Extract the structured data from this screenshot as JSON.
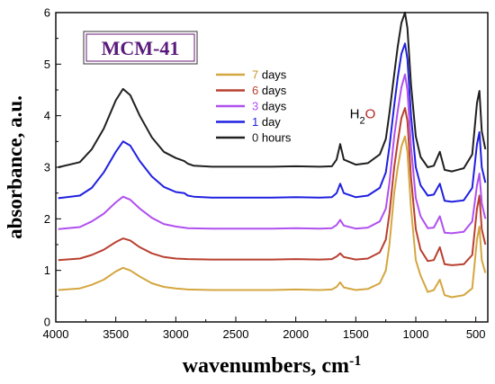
{
  "chart_data": {
    "type": "line",
    "badge": "MCM-41",
    "xlabel": "wavenumbers, cm",
    "xlabel_sup": "-1",
    "ylabel": "absorbance, a.u.",
    "xlim": [
      4000,
      400
    ],
    "ylim": [
      0,
      6
    ],
    "x_ticks": [
      4000,
      3500,
      3000,
      2500,
      2000,
      1500,
      1000,
      500
    ],
    "y_ticks": [
      0,
      1,
      2,
      3,
      4,
      5,
      6
    ],
    "grid": false,
    "legend_position": "top-center",
    "annotations": [
      {
        "text_main": "H",
        "text_sub": "2",
        "text_tail": "O",
        "tail_color": "#b22222",
        "x": 1550,
        "y": 3.95
      }
    ],
    "series": [
      {
        "name_num": "7",
        "name_unit": "days",
        "color": "#d4a640",
        "num_color": "#c8962a",
        "points": [
          [
            3980,
            0.62
          ],
          [
            3800,
            0.65
          ],
          [
            3700,
            0.72
          ],
          [
            3600,
            0.82
          ],
          [
            3500,
            0.98
          ],
          [
            3440,
            1.05
          ],
          [
            3380,
            1.0
          ],
          [
            3300,
            0.88
          ],
          [
            3200,
            0.75
          ],
          [
            3100,
            0.68
          ],
          [
            3000,
            0.65
          ],
          [
            2900,
            0.63
          ],
          [
            2700,
            0.62
          ],
          [
            2500,
            0.62
          ],
          [
            2200,
            0.62
          ],
          [
            2000,
            0.63
          ],
          [
            1800,
            0.62
          ],
          [
            1700,
            0.63
          ],
          [
            1660,
            0.68
          ],
          [
            1630,
            0.77
          ],
          [
            1600,
            0.67
          ],
          [
            1500,
            0.62
          ],
          [
            1400,
            0.64
          ],
          [
            1300,
            0.75
          ],
          [
            1250,
            1.0
          ],
          [
            1220,
            1.5
          ],
          [
            1180,
            2.5
          ],
          [
            1150,
            3.0
          ],
          [
            1120,
            3.4
          ],
          [
            1090,
            3.6
          ],
          [
            1070,
            3.3
          ],
          [
            1040,
            2.2
          ],
          [
            1000,
            1.2
          ],
          [
            960,
            0.9
          ],
          [
            900,
            0.58
          ],
          [
            850,
            0.62
          ],
          [
            800,
            0.82
          ],
          [
            760,
            0.52
          ],
          [
            700,
            0.48
          ],
          [
            600,
            0.52
          ],
          [
            530,
            0.65
          ],
          [
            490,
            1.6
          ],
          [
            470,
            1.85
          ],
          [
            450,
            1.2
          ],
          [
            420,
            0.95
          ]
        ]
      },
      {
        "name_num": "6",
        "name_unit": "days",
        "color": "#b84030",
        "num_color": "#b84030",
        "points": [
          [
            3980,
            1.2
          ],
          [
            3800,
            1.23
          ],
          [
            3700,
            1.3
          ],
          [
            3600,
            1.4
          ],
          [
            3500,
            1.55
          ],
          [
            3440,
            1.62
          ],
          [
            3380,
            1.58
          ],
          [
            3300,
            1.45
          ],
          [
            3200,
            1.33
          ],
          [
            3100,
            1.26
          ],
          [
            3000,
            1.23
          ],
          [
            2900,
            1.22
          ],
          [
            2700,
            1.21
          ],
          [
            2500,
            1.21
          ],
          [
            2200,
            1.21
          ],
          [
            2000,
            1.22
          ],
          [
            1800,
            1.21
          ],
          [
            1700,
            1.22
          ],
          [
            1660,
            1.27
          ],
          [
            1630,
            1.33
          ],
          [
            1600,
            1.26
          ],
          [
            1500,
            1.21
          ],
          [
            1400,
            1.23
          ],
          [
            1300,
            1.35
          ],
          [
            1250,
            1.6
          ],
          [
            1220,
            2.1
          ],
          [
            1180,
            3.0
          ],
          [
            1150,
            3.5
          ],
          [
            1120,
            3.95
          ],
          [
            1090,
            4.15
          ],
          [
            1070,
            3.9
          ],
          [
            1040,
            2.8
          ],
          [
            1000,
            1.8
          ],
          [
            960,
            1.4
          ],
          [
            900,
            1.18
          ],
          [
            850,
            1.2
          ],
          [
            800,
            1.45
          ],
          [
            760,
            1.12
          ],
          [
            700,
            1.1
          ],
          [
            600,
            1.12
          ],
          [
            530,
            1.3
          ],
          [
            490,
            2.2
          ],
          [
            470,
            2.45
          ],
          [
            450,
            1.8
          ],
          [
            420,
            1.5
          ]
        ]
      },
      {
        "name_num": "3",
        "name_unit": "days",
        "color": "#b050f0",
        "num_color": "#b050f0",
        "points": [
          [
            3980,
            1.8
          ],
          [
            3800,
            1.84
          ],
          [
            3700,
            1.95
          ],
          [
            3600,
            2.1
          ],
          [
            3500,
            2.32
          ],
          [
            3440,
            2.43
          ],
          [
            3380,
            2.37
          ],
          [
            3300,
            2.2
          ],
          [
            3200,
            2.02
          ],
          [
            3100,
            1.9
          ],
          [
            3000,
            1.85
          ],
          [
            2900,
            1.82
          ],
          [
            2700,
            1.81
          ],
          [
            2500,
            1.81
          ],
          [
            2200,
            1.81
          ],
          [
            2000,
            1.82
          ],
          [
            1800,
            1.81
          ],
          [
            1700,
            1.82
          ],
          [
            1660,
            1.88
          ],
          [
            1630,
            1.98
          ],
          [
            1600,
            1.87
          ],
          [
            1500,
            1.81
          ],
          [
            1400,
            1.83
          ],
          [
            1300,
            1.95
          ],
          [
            1250,
            2.2
          ],
          [
            1220,
            2.7
          ],
          [
            1180,
            3.6
          ],
          [
            1150,
            4.1
          ],
          [
            1120,
            4.55
          ],
          [
            1090,
            4.8
          ],
          [
            1070,
            4.5
          ],
          [
            1040,
            3.4
          ],
          [
            1000,
            2.4
          ],
          [
            960,
            2.05
          ],
          [
            900,
            1.82
          ],
          [
            850,
            1.83
          ],
          [
            800,
            2.05
          ],
          [
            760,
            1.73
          ],
          [
            700,
            1.72
          ],
          [
            600,
            1.75
          ],
          [
            530,
            1.95
          ],
          [
            490,
            2.65
          ],
          [
            470,
            2.88
          ],
          [
            450,
            2.3
          ],
          [
            420,
            2.0
          ]
        ]
      },
      {
        "name_num": "1",
        "name_unit": "day",
        "color": "#2020e0",
        "num_color": "#2020e0",
        "points": [
          [
            3980,
            2.4
          ],
          [
            3800,
            2.45
          ],
          [
            3700,
            2.6
          ],
          [
            3600,
            2.9
          ],
          [
            3500,
            3.3
          ],
          [
            3440,
            3.5
          ],
          [
            3380,
            3.42
          ],
          [
            3300,
            3.12
          ],
          [
            3200,
            2.82
          ],
          [
            3100,
            2.62
          ],
          [
            3000,
            2.52
          ],
          [
            2930,
            2.5
          ],
          [
            2900,
            2.45
          ],
          [
            2850,
            2.43
          ],
          [
            2700,
            2.41
          ],
          [
            2500,
            2.41
          ],
          [
            2200,
            2.41
          ],
          [
            2000,
            2.42
          ],
          [
            1800,
            2.41
          ],
          [
            1700,
            2.42
          ],
          [
            1660,
            2.5
          ],
          [
            1630,
            2.68
          ],
          [
            1600,
            2.5
          ],
          [
            1500,
            2.42
          ],
          [
            1400,
            2.45
          ],
          [
            1300,
            2.6
          ],
          [
            1250,
            2.9
          ],
          [
            1220,
            3.4
          ],
          [
            1180,
            4.2
          ],
          [
            1150,
            4.75
          ],
          [
            1120,
            5.2
          ],
          [
            1090,
            5.4
          ],
          [
            1070,
            5.1
          ],
          [
            1040,
            4.0
          ],
          [
            1000,
            3.0
          ],
          [
            960,
            2.65
          ],
          [
            900,
            2.45
          ],
          [
            850,
            2.47
          ],
          [
            800,
            2.68
          ],
          [
            760,
            2.35
          ],
          [
            700,
            2.33
          ],
          [
            600,
            2.36
          ],
          [
            530,
            2.6
          ],
          [
            490,
            3.45
          ],
          [
            470,
            3.68
          ],
          [
            450,
            3.0
          ],
          [
            420,
            2.7
          ]
        ]
      },
      {
        "name_num": "0",
        "name_unit": "hours",
        "color": "#202020",
        "num_color": "#202020",
        "points": [
          [
            3980,
            3.0
          ],
          [
            3800,
            3.1
          ],
          [
            3700,
            3.35
          ],
          [
            3600,
            3.75
          ],
          [
            3500,
            4.3
          ],
          [
            3440,
            4.52
          ],
          [
            3380,
            4.4
          ],
          [
            3300,
            4.0
          ],
          [
            3200,
            3.58
          ],
          [
            3100,
            3.3
          ],
          [
            3000,
            3.18
          ],
          [
            2930,
            3.12
          ],
          [
            2900,
            3.07
          ],
          [
            2850,
            3.03
          ],
          [
            2700,
            3.01
          ],
          [
            2500,
            3.01
          ],
          [
            2200,
            3.01
          ],
          [
            2000,
            3.02
          ],
          [
            1800,
            3.01
          ],
          [
            1700,
            3.02
          ],
          [
            1660,
            3.15
          ],
          [
            1630,
            3.45
          ],
          [
            1600,
            3.15
          ],
          [
            1500,
            3.05
          ],
          [
            1400,
            3.08
          ],
          [
            1300,
            3.25
          ],
          [
            1250,
            3.55
          ],
          [
            1220,
            4.05
          ],
          [
            1180,
            4.8
          ],
          [
            1150,
            5.35
          ],
          [
            1120,
            5.8
          ],
          [
            1090,
            6.0
          ],
          [
            1070,
            5.7
          ],
          [
            1040,
            4.6
          ],
          [
            1000,
            3.6
          ],
          [
            960,
            3.2
          ],
          [
            900,
            3.0
          ],
          [
            850,
            3.03
          ],
          [
            800,
            3.3
          ],
          [
            760,
            2.95
          ],
          [
            700,
            2.92
          ],
          [
            600,
            2.98
          ],
          [
            530,
            3.25
          ],
          [
            490,
            4.25
          ],
          [
            470,
            4.48
          ],
          [
            450,
            3.7
          ],
          [
            420,
            3.35
          ]
        ]
      }
    ]
  }
}
